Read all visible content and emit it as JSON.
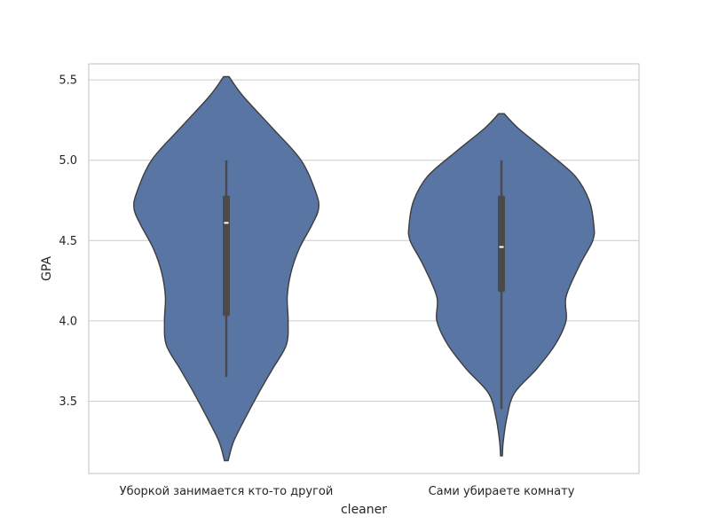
{
  "chart_data": {
    "type": "violin",
    "title": "",
    "xlabel": "cleaner",
    "ylabel": "GPA",
    "ylim": [
      3.05,
      5.6
    ],
    "yticks": [
      3.5,
      4.0,
      4.5,
      5.0,
      5.5
    ],
    "ytick_labels": [
      "3.5",
      "4.0",
      "4.5",
      "5.0",
      "5.5"
    ],
    "grid": "horizontal",
    "categories": [
      "Уборкой занимается кто-то другой",
      "Сами убираете комнату"
    ],
    "violins": [
      {
        "category": "Уборкой занимается кто-то другой",
        "range": [
          3.13,
          5.52
        ],
        "density_profile": [
          [
            5.52,
            0.03
          ],
          [
            5.4,
            0.18
          ],
          [
            5.2,
            0.5
          ],
          [
            5.0,
            0.81
          ],
          [
            4.8,
            0.97
          ],
          [
            4.7,
            1.0
          ],
          [
            4.6,
            0.93
          ],
          [
            4.45,
            0.79
          ],
          [
            4.3,
            0.7
          ],
          [
            4.15,
            0.66
          ],
          [
            4.0,
            0.67
          ],
          [
            3.85,
            0.65
          ],
          [
            3.7,
            0.5
          ],
          [
            3.55,
            0.35
          ],
          [
            3.4,
            0.21
          ],
          [
            3.25,
            0.08
          ],
          [
            3.13,
            0.02
          ]
        ],
        "whisker": [
          3.65,
          5.0
        ],
        "q1": 4.03,
        "median": 4.61,
        "q3": 4.78
      },
      {
        "category": "Сами убираете комнату",
        "range": [
          3.16,
          5.29
        ],
        "density_profile": [
          [
            5.29,
            0.03
          ],
          [
            5.2,
            0.18
          ],
          [
            5.05,
            0.5
          ],
          [
            4.9,
            0.8
          ],
          [
            4.75,
            0.95
          ],
          [
            4.6,
            1.0
          ],
          [
            4.5,
            0.99
          ],
          [
            4.35,
            0.85
          ],
          [
            4.15,
            0.7
          ],
          [
            4.0,
            0.7
          ],
          [
            3.85,
            0.58
          ],
          [
            3.7,
            0.38
          ],
          [
            3.55,
            0.14
          ],
          [
            3.4,
            0.06
          ],
          [
            3.25,
            0.02
          ],
          [
            3.16,
            0.01
          ]
        ],
        "whisker": [
          3.45,
          5.0
        ],
        "q1": 4.18,
        "median": 4.46,
        "q3": 4.78
      }
    ],
    "colors": {
      "violin_fill": "#5975a4",
      "violin_edge": "#3d3d3d",
      "box": "#4a4a4a",
      "median": "#ffffff",
      "grid": "#cccccc",
      "frame": "#cccccc"
    }
  }
}
